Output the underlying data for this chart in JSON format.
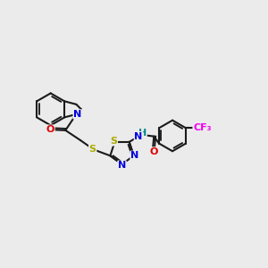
{
  "bg_color": "#ebebeb",
  "bond_color": "#1a1a1a",
  "N_color": "#0000dd",
  "O_color": "#dd0000",
  "S_color": "#aaaa00",
  "F_color": "#ee00ee",
  "H_color": "#008888",
  "line_width": 1.5,
  "font_size": 8.0,
  "xlim": [
    -4.6,
    4.0
  ],
  "ylim": [
    -1.8,
    2.6
  ]
}
